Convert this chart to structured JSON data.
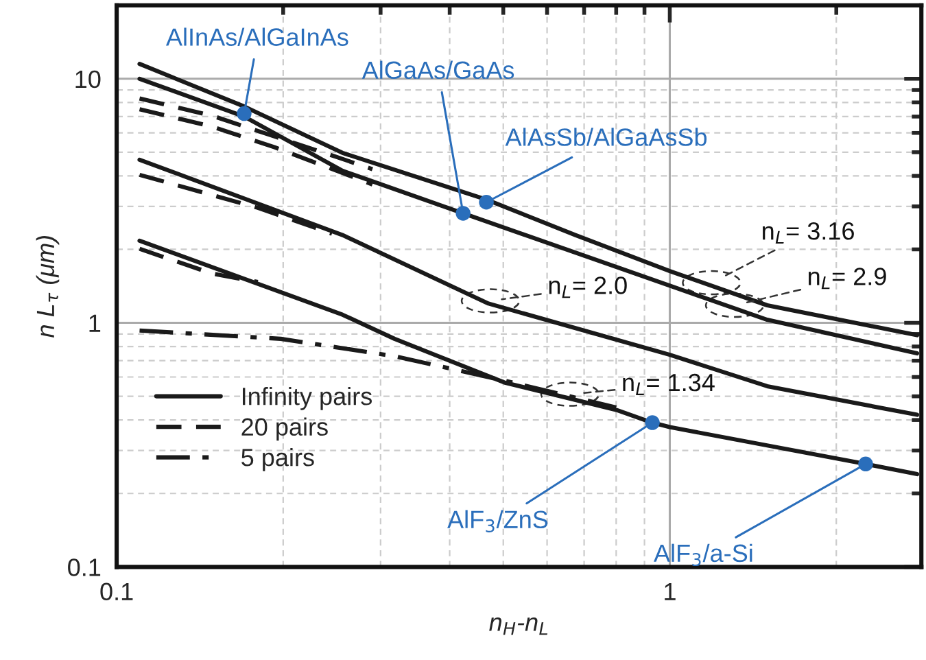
{
  "chart_data": {
    "type": "line",
    "xlabel": "n$_{H}$-n$_{L}$",
    "ylabel": "n L$_{τ}$ (μm)",
    "log": "xy",
    "xlim": [
      0.1,
      2.85
    ],
    "ylim": [
      0.1,
      20
    ],
    "xticks": [
      0.1,
      {
        "value": 0.2,
        "label": null
      },
      {
        "value": 0.3,
        "label": null
      },
      {
        "value": 0.4,
        "label": null
      },
      {
        "value": 0.5,
        "label": null
      },
      {
        "value": 0.6,
        "label": null
      },
      {
        "value": 0.7,
        "label": null
      },
      {
        "value": 0.8,
        "label": null
      },
      {
        "value": 0.9,
        "label": null
      },
      1,
      {
        "value": 2,
        "label": null
      }
    ],
    "yticks": [
      0.1,
      {
        "value": 0.2,
        "label": null
      },
      {
        "value": 0.3,
        "label": null
      },
      {
        "value": 0.4,
        "label": null
      },
      {
        "value": 0.5,
        "label": null
      },
      {
        "value": 0.6,
        "label": null
      },
      {
        "value": 0.7,
        "label": null
      },
      {
        "value": 0.8,
        "label": null
      },
      {
        "value": 0.9,
        "label": null
      },
      1,
      {
        "value": 2,
        "label": null
      },
      {
        "value": 3,
        "label": null
      },
      {
        "value": 4,
        "label": null
      },
      {
        "value": 5,
        "label": null
      },
      {
        "value": 6,
        "label": null
      },
      {
        "value": 7,
        "label": null
      },
      {
        "value": 8,
        "label": null
      },
      {
        "value": 9,
        "label": null
      },
      10
    ],
    "grid": true,
    "legend": "bottom left",
    "marker": "none",
    "series": [
      {
        "name": "Infinity pairs",
        "color": "#1a1a1a",
        "line_style": "solid",
        "x": [
          0.11,
          0.17,
          0.256,
          0.466,
          0.675,
          1,
          1.5,
          2.8
        ],
        "values": [
          11.5,
          7.7,
          4.97,
          3.2,
          2.29,
          1.63,
          1.18,
          0.89
        ]
      },
      {
        "color": "#1a1a1a",
        "line_style": "solid",
        "x": [
          0.11,
          0.17,
          0.256,
          0.423,
          1,
          1.5,
          2.8
        ],
        "values": [
          10.0,
          7.0,
          4.2,
          2.81,
          1.42,
          1.03,
          0.75
        ]
      },
      {
        "color": "#1a1a1a",
        "line_style": "solid",
        "x": [
          0.11,
          0.256,
          0.47,
          1,
          1.5,
          2.8
        ],
        "values": [
          4.66,
          2.29,
          1.2,
          0.74,
          0.55,
          0.42
        ]
      },
      {
        "color": "#1a1a1a",
        "line_style": "solid",
        "x": [
          0.11,
          0.256,
          0.318,
          0.502,
          0.8,
          0.93,
          1,
          2.26,
          2.8
        ],
        "values": [
          2.17,
          1.08,
          0.86,
          0.57,
          0.44,
          0.39,
          0.374,
          0.264,
          0.24
        ]
      },
      {
        "name": "20 pairs",
        "color": "#1a1a1a",
        "line_style": "dashed",
        "x": [
          0.11,
          0.149,
          0.193,
          0.25,
          0.29
        ],
        "values": [
          8.3,
          7.05,
          5.8,
          4.78,
          4.26
        ]
      },
      {
        "color": "#1a1a1a",
        "line_style": "dashed",
        "x": [
          0.11,
          0.149,
          0.193,
          0.25,
          0.29
        ],
        "values": [
          7.5,
          6.36,
          5.24,
          4.2,
          3.69
        ]
      },
      {
        "color": "#1a1a1a",
        "line_style": "dashed",
        "x": [
          0.11,
          0.18,
          0.245
        ],
        "values": [
          4.04,
          2.96,
          2.32
        ]
      },
      {
        "color": "#1a1a1a",
        "line_style": "dashed",
        "x": [
          0.11,
          0.149,
          0.18
        ],
        "values": [
          2.01,
          1.59,
          1.47
        ]
      },
      {
        "name": "5 pairs",
        "color": "#1a1a1a",
        "line_style": "dashdot",
        "x": [
          0.11,
          0.198,
          0.318,
          0.502,
          0.8
        ],
        "values": [
          0.93,
          0.86,
          0.73,
          0.58,
          0.45
        ]
      },
      {
        "type": "scatter",
        "color": "#2a6ebb",
        "marker": "circle",
        "x": [
          0.17,
          0.423,
          0.466,
          0.93,
          2.26
        ],
        "values": [
          7.2,
          2.81,
          3.12,
          0.39,
          0.264
        ]
      }
    ],
    "annotations": [
      {
        "text": "AlInAs/AlGaInAs",
        "x": 0.17,
        "y": 7.2
      },
      {
        "text": "AlGaAs/GaAs",
        "x": 0.423,
        "y": 2.81
      },
      {
        "text": "AlAsSb/AlGaAsSb",
        "x": 0.466,
        "y": 3.12
      },
      {
        "text": "AlF$_{3}$/ZnS",
        "x": 0.93,
        "y": 0.39
      },
      {
        "text": "AlF$_{3}$/a-Si",
        "x": 2.26,
        "y": 0.264
      },
      {
        "text": "n$_{L}$= 3.16",
        "x": 1.19,
        "y": 1.46
      },
      {
        "text": "n$_{L}$= 2.9",
        "x": 1.31,
        "y": 1.18
      },
      {
        "text": "n$_{L}$= 2.0",
        "x": 0.474,
        "y": 1.23
      },
      {
        "text": "n$_{L}$= 1.34",
        "x": 0.66,
        "y": 0.51
      }
    ]
  }
}
